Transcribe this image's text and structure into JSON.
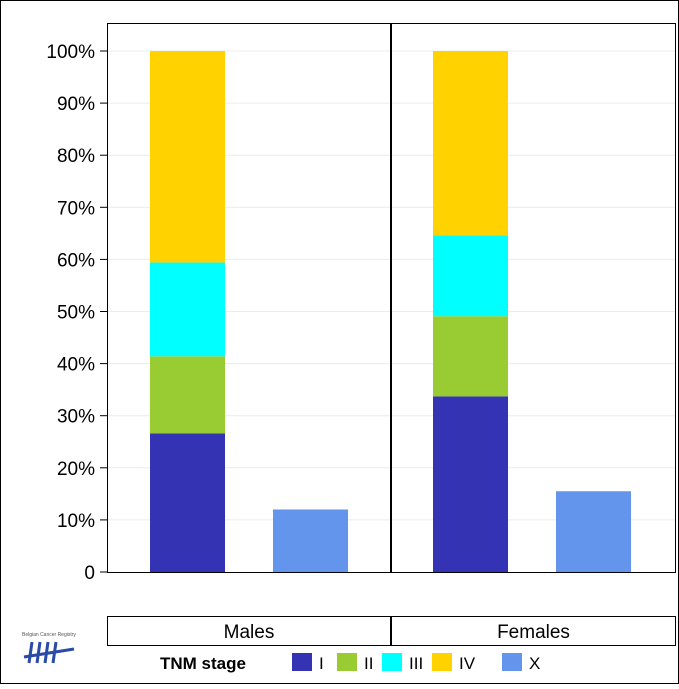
{
  "chart_data": {
    "type": "bar",
    "stacked": true,
    "y_tick_labels": [
      "0",
      "10%",
      "20%",
      "30%",
      "40%",
      "50%",
      "60%",
      "70%",
      "80%",
      "90%",
      "100%"
    ],
    "ylim": [
      0,
      100
    ],
    "grid": true,
    "panels": [
      {
        "label": "Males",
        "stacked_bar": {
          "I": 26.6,
          "II": 14.8,
          "III": 18.0,
          "IV": 40.6
        },
        "x_bar": 12.0
      },
      {
        "label": "Females",
        "stacked_bar": {
          "I": 33.7,
          "II": 15.4,
          "III": 15.5,
          "IV": 35.4
        },
        "x_bar": 15.5
      }
    ],
    "legend": {
      "title": "TNM stage",
      "placement": "bottom",
      "entries": [
        {
          "name": "I",
          "color": "#3333b4"
        },
        {
          "name": "II",
          "color": "#99cc33"
        },
        {
          "name": "III",
          "color": "#00ffff"
        },
        {
          "name": "IV",
          "color": "#ffd200"
        },
        {
          "name": "X",
          "color": "#6495ed"
        }
      ]
    }
  },
  "logo": {
    "text": "Belgian Cancer Registry",
    "icon": "tally-marks-logo-icon"
  }
}
